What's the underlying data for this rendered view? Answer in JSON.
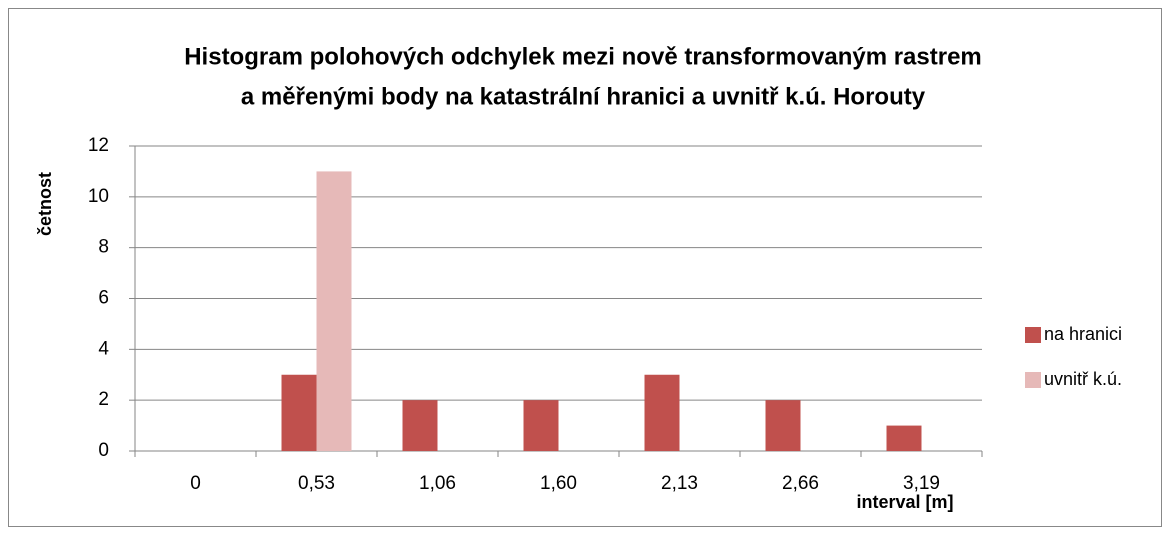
{
  "chart_data": {
    "type": "bar",
    "title": [
      "Histogram polohových odchylek mezi nově transformovaným rastrem",
      "a měřenými body na katastrální hranici a uvnitř k.ú. Horouty"
    ],
    "x_label": "interval [m]",
    "y_label": "četnost",
    "categories": [
      "0",
      "0,53",
      "1,06",
      "1,60",
      "2,13",
      "2,66",
      "3,19"
    ],
    "series": [
      {
        "name": "na hranici",
        "color": "#c0504d",
        "values": [
          0,
          3,
          2,
          2,
          3,
          2,
          1
        ]
      },
      {
        "name": "uvnitř k.ú.",
        "color": "#e6b9b8",
        "values": [
          0,
          11,
          0,
          0,
          0,
          0,
          0
        ]
      }
    ],
    "ylim": [
      0,
      12
    ],
    "yticks": [
      0,
      2,
      4,
      6,
      8,
      10,
      12
    ],
    "grid": true,
    "legend": "right"
  }
}
